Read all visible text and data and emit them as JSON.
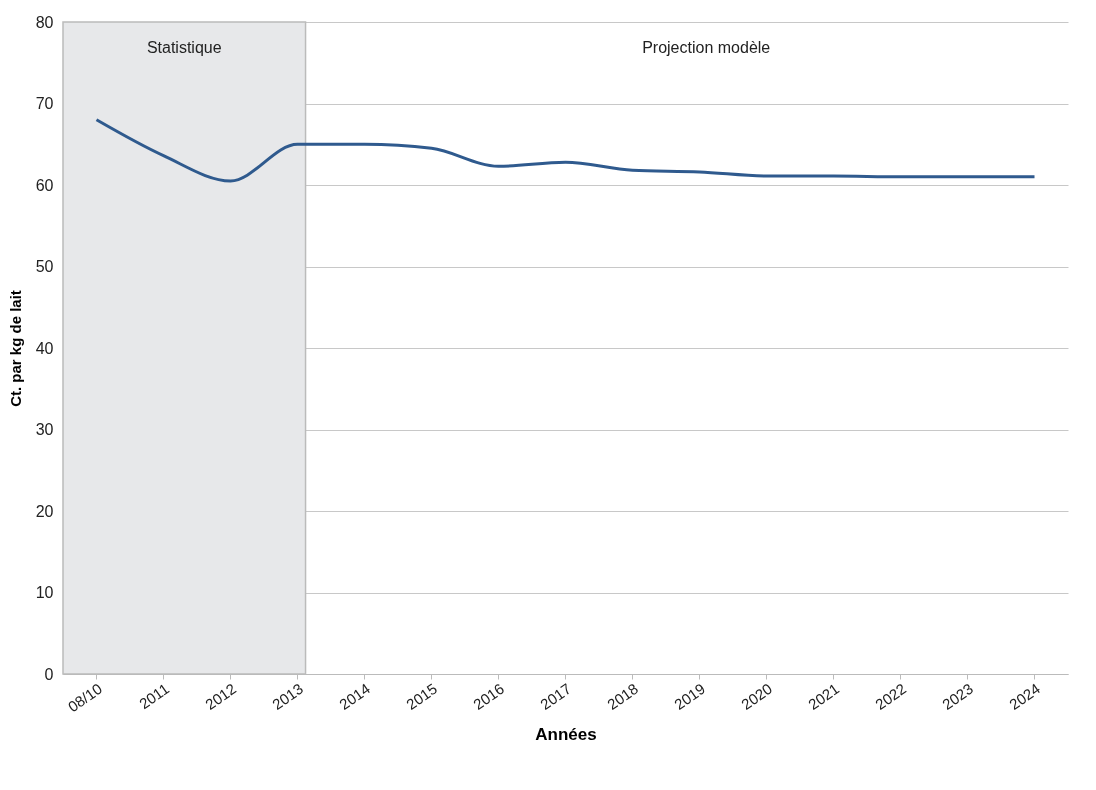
{
  "chart_data": {
    "type": "line",
    "xlabel": "Années",
    "ylabel": "Ct. par kg de lait",
    "categories": [
      "08/10",
      "2011",
      "2012",
      "2013",
      "2014",
      "2015",
      "2016",
      "2017",
      "2018",
      "2019",
      "2020",
      "2021",
      "2022",
      "2023",
      "2024"
    ],
    "series": [
      {
        "color": "#2f5a8e",
        "values": [
          68,
          63.6,
          60.5,
          65,
          65,
          64.5,
          62.3,
          62.8,
          61.8,
          61.6,
          61.1,
          61.1,
          61,
          61,
          61
        ]
      }
    ],
    "ylim": [
      0,
      80
    ],
    "yticks": [
      0,
      10,
      20,
      30,
      40,
      50,
      60,
      70,
      80
    ],
    "grid": "y",
    "marker": "none",
    "line_style": "solid",
    "bands": [
      {
        "axis": "x",
        "from": "08/10",
        "to": "2013",
        "label": "Statistique",
        "color": "#e7e8ea"
      }
    ],
    "annotations": [
      "Projection modèle"
    ]
  }
}
